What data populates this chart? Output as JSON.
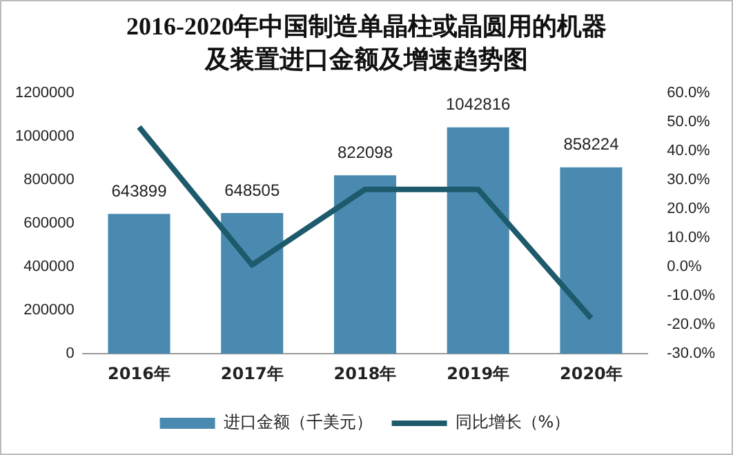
{
  "chart_data": {
    "type": "bar",
    "title": "2016-2020年中国制造单晶柱或晶圆用的机器及装置进口金额及增速趋势图",
    "categories": [
      "2016年",
      "2017年",
      "2018年",
      "2019年",
      "2020年"
    ],
    "series": [
      {
        "name": "进口金额（千美元）",
        "type": "bar",
        "color": "#4a8ab0",
        "values": [
          643899,
          648505,
          822098,
          1042816,
          858224
        ],
        "value_labels": [
          "643899",
          "648505",
          "822098",
          "1042816",
          "858224"
        ]
      },
      {
        "name": "同比增长（%）",
        "type": "line",
        "axis": "y2",
        "color": "#1d5a6c",
        "values": [
          48.3,
          0.7,
          26.8,
          26.8,
          -17.7
        ]
      }
    ],
    "ylim": [
      0,
      1200000
    ],
    "yticks": [
      0,
      200000,
      400000,
      600000,
      800000,
      1000000,
      1200000
    ],
    "y2lim": [
      -30,
      60
    ],
    "y2ticks": [
      {
        "value": -30,
        "label": "-30.0%"
      },
      {
        "value": -20,
        "label": "-20.0%"
      },
      {
        "value": -10,
        "label": "-10.0%"
      },
      {
        "value": 0,
        "label": "0.0%"
      },
      {
        "value": 10,
        "label": "10.0%"
      },
      {
        "value": 20,
        "label": "20.0%"
      },
      {
        "value": 30,
        "label": "30.0%"
      },
      {
        "value": 40,
        "label": "40.0%"
      },
      {
        "value": 50,
        "label": "50.0%"
      },
      {
        "value": 60,
        "label": "60.0%"
      }
    ],
    "grid": false,
    "legend": "bottom",
    "marker": "none",
    "line_style": "solid"
  }
}
